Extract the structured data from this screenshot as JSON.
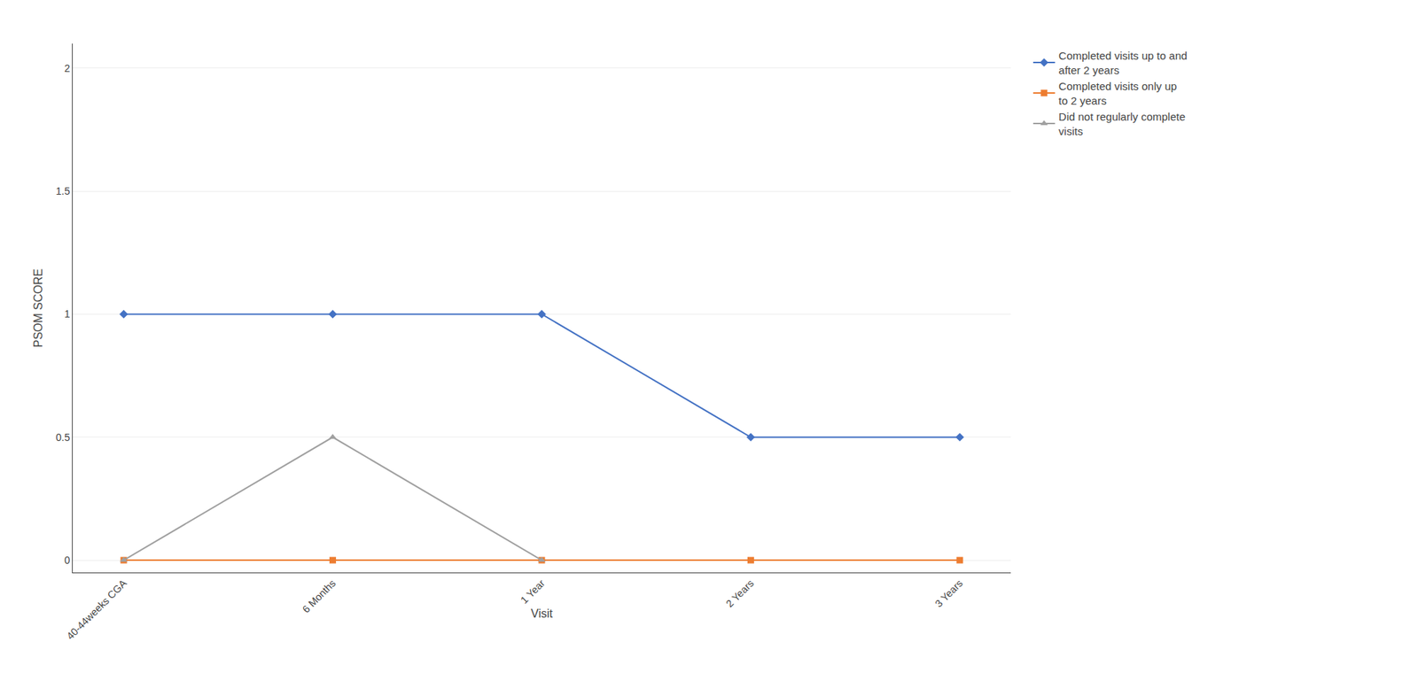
{
  "chart_data": {
    "type": "line",
    "categories": [
      "40-44weeks CGA",
      "6 Months",
      "1 Year",
      "2 Years",
      "3 Years"
    ],
    "series": [
      {
        "name": "Completed visits up to and\nafter 2 years",
        "color": "#4472C4",
        "marker": "diamond",
        "line_style": "solid",
        "values": [
          1.0,
          1.0,
          1.0,
          0.5,
          0.5
        ]
      },
      {
        "name": "Completed visits only up\nto 2 years",
        "color": "#ED7D31",
        "marker": "square",
        "line_style": "solid",
        "values": [
          0.0,
          0.0,
          0.0,
          0.0,
          0.0
        ]
      },
      {
        "name": "Did not regularly complete\nvisits",
        "color": "#a0a0a0",
        "marker": "triangle-up",
        "line_style": "solid",
        "values": [
          0.0,
          0.5,
          0.0,
          null,
          null
        ]
      }
    ],
    "xlabel": "Visit",
    "ylabel": "PSOM SCORE",
    "ylim": [
      -0.05,
      2.1
    ],
    "yticks": [
      0,
      0.5,
      1,
      1.5,
      2
    ],
    "grid": true,
    "legend": "right"
  }
}
